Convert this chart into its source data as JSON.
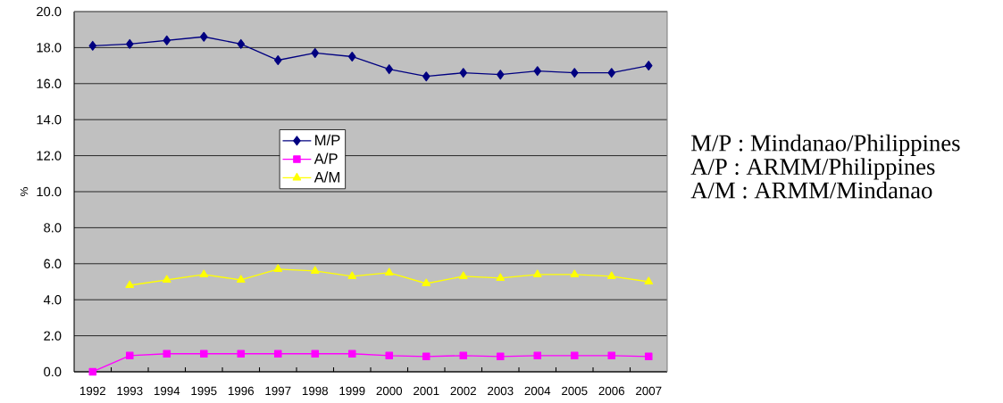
{
  "chart_data": {
    "type": "line",
    "ylabel": "%",
    "categories": [
      "1992",
      "1993",
      "1994",
      "1995",
      "1996",
      "1997",
      "1998",
      "1999",
      "2000",
      "2001",
      "2002",
      "2003",
      "2004",
      "2005",
      "2006",
      "2007"
    ],
    "series": [
      {
        "name": "M/P",
        "color": "#000080",
        "marker": "diamond",
        "values": [
          18.1,
          18.2,
          18.4,
          18.6,
          18.2,
          17.3,
          17.7,
          17.5,
          16.8,
          16.4,
          16.6,
          16.5,
          16.7,
          16.6,
          16.6,
          17.0
        ]
      },
      {
        "name": "A/P",
        "color": "#ff00ff",
        "marker": "square",
        "values": [
          0.0,
          0.9,
          1.0,
          1.0,
          1.0,
          1.0,
          1.0,
          1.0,
          0.9,
          0.85,
          0.9,
          0.85,
          0.9,
          0.9,
          0.9,
          0.85
        ]
      },
      {
        "name": "A/M",
        "color": "#ffff00",
        "marker": "triangle",
        "values": [
          null,
          4.8,
          5.1,
          5.4,
          5.1,
          5.7,
          5.6,
          5.3,
          5.5,
          4.9,
          5.3,
          5.2,
          5.4,
          5.4,
          5.3,
          5.0
        ]
      }
    ],
    "ylim": [
      0,
      20
    ],
    "yticks": [
      {
        "value": 0,
        "label": "0.0"
      },
      {
        "value": 2,
        "label": "2.0"
      },
      {
        "value": 4,
        "label": "4.0"
      },
      {
        "value": 6,
        "label": "6.0"
      },
      {
        "value": 8,
        "label": "8.0"
      },
      {
        "value": 10,
        "label": "10.0"
      },
      {
        "value": 12,
        "label": "12.0"
      },
      {
        "value": 14,
        "label": "14.0"
      },
      {
        "value": 16,
        "label": "16.0"
      },
      {
        "value": 18,
        "label": "18.0"
      },
      {
        "value": 20,
        "label": "20.0"
      }
    ],
    "grid": "y",
    "legend": "center",
    "line_style": "solid",
    "annotations": [
      "M/P : Mindanao/Philippines",
      "A/P : ARMM/Philippines",
      "A/M : ARMM/Mindanao"
    ]
  }
}
